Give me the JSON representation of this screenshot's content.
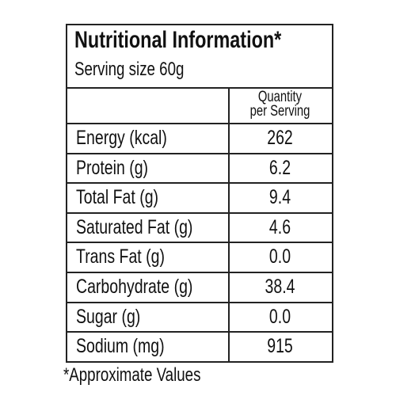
{
  "header": {
    "title": "Nutritional Information*",
    "serving": "Serving size 60g"
  },
  "table": {
    "column_header": [
      "Quantity",
      "per Serving"
    ],
    "rows": [
      [
        "Energy (kcal)",
        "262"
      ],
      [
        "Protein (g)",
        "6.2"
      ],
      [
        "Total Fat (g)",
        "9.4"
      ],
      [
        "Saturated Fat (g)",
        "4.6"
      ],
      [
        "Trans Fat (g)",
        "0.0"
      ],
      [
        "Carbohydrate (g)",
        "38.4"
      ],
      [
        "Sugar (g)",
        "0.0"
      ],
      [
        "Sodium (mg)",
        "915"
      ]
    ]
  },
  "footnote": "*Approximate Values"
}
